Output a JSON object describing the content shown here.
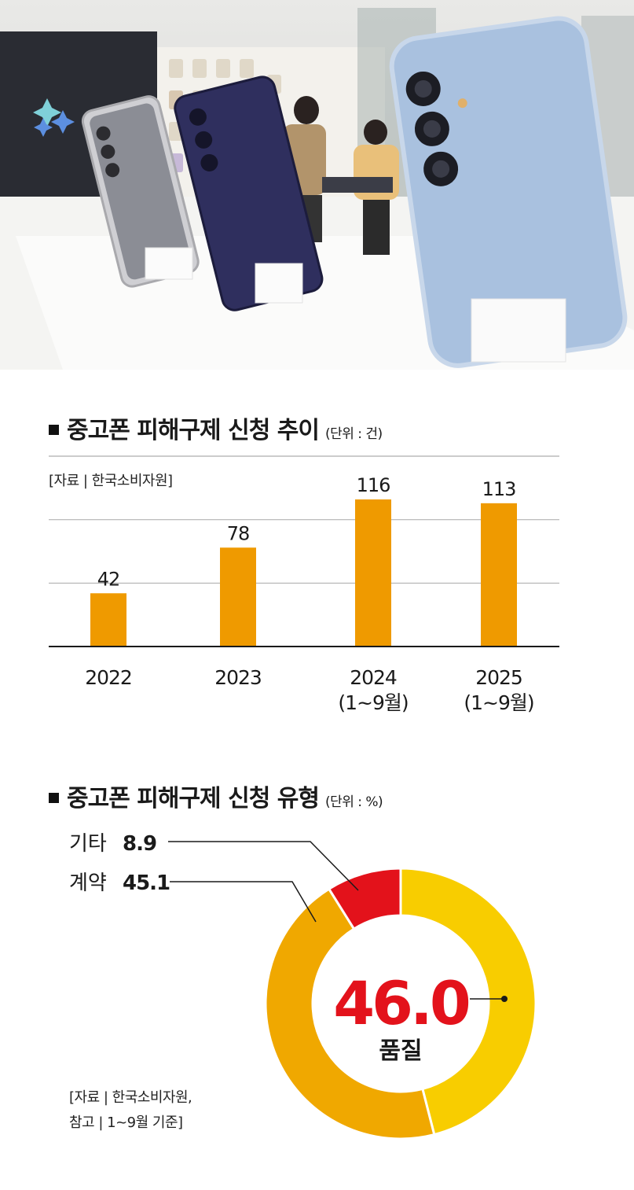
{
  "bar_section": {
    "title": "중고폰 피해구제 신청 추이",
    "unit": "(단위 : 건)",
    "source": "[자료 | 한국소비자원]"
  },
  "donut_section": {
    "title": "중고폰 피해구제 신청 유형",
    "unit": "(단위 : %)",
    "source_line1": "[자료 | 한국소비자원,",
    "source_line2": "참고 | 1~9월 기준]"
  },
  "colors": {
    "bar": "#ef9a00",
    "donut_quality": "#f8cd00",
    "donut_contract": "#f0a800",
    "donut_other": "#e3121b",
    "highlight_number": "#e3121b"
  },
  "chart_data": [
    {
      "type": "bar",
      "title": "중고폰 피해구제 신청 추이",
      "unit": "(단위 : 건)",
      "categories": [
        [
          "2022"
        ],
        [
          "2023"
        ],
        [
          "2024",
          "(1~9월)"
        ],
        [
          "2025",
          "(1~9월)"
        ]
      ],
      "values": [
        42,
        78,
        116,
        113
      ],
      "value_labels": [
        "42",
        "78",
        "116",
        "113"
      ],
      "ylim": [
        0,
        120
      ],
      "grid": true
    },
    {
      "type": "pie",
      "style": "donut",
      "title": "중고폰 피해구제 신청 유형",
      "unit": "(단위 : %)",
      "slices": [
        {
          "label": "품질",
          "value": 46.0,
          "value_label": "46.0"
        },
        {
          "label": "계약",
          "value": 45.1,
          "value_label": "45.1"
        },
        {
          "label": "기타",
          "value": 8.9,
          "value_label": "8.9"
        }
      ]
    }
  ]
}
